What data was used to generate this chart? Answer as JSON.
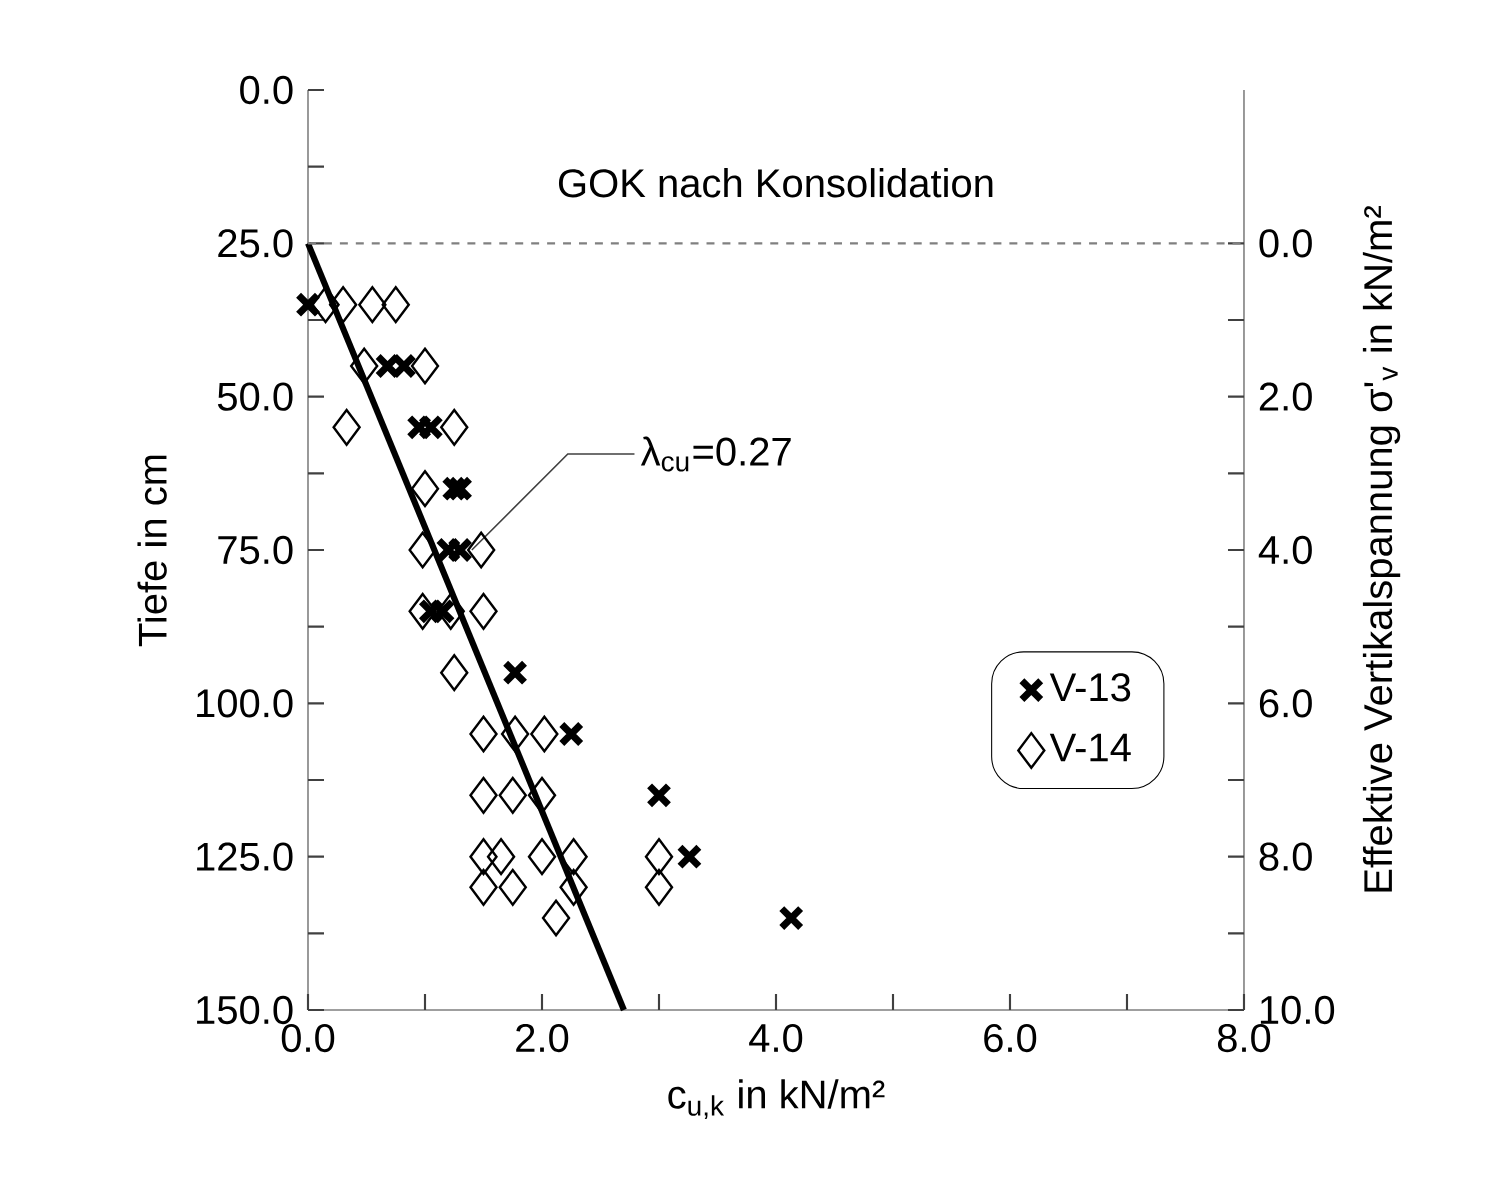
{
  "chart_data": {
    "type": "scatter",
    "xlabel": "c$_{u,k}$ in kN/m²",
    "ylabel": "Tiefe in cm",
    "y2label": "Effektive Vertikalspannung σ'$_{v}$ in kN/m²",
    "xlim": [
      0,
      8
    ],
    "ylim": [
      150,
      0
    ],
    "y2lim": [
      10,
      -2
    ],
    "xticks": [
      {
        "value": 0,
        "label": "0.0"
      },
      {
        "value": 1,
        "label": null
      },
      {
        "value": 2,
        "label": "2.0"
      },
      {
        "value": 3,
        "label": null
      },
      {
        "value": 4,
        "label": "4.0"
      },
      {
        "value": 5,
        "label": null
      },
      {
        "value": 6,
        "label": "6.0"
      },
      {
        "value": 7,
        "label": null
      },
      {
        "value": 8,
        "label": "8.0"
      }
    ],
    "yticks": [
      {
        "value": 0,
        "label": "0.0"
      },
      {
        "value": 12.5,
        "label": null
      },
      {
        "value": 25,
        "label": "25.0"
      },
      {
        "value": 37.5,
        "label": null
      },
      {
        "value": 50,
        "label": "50.0"
      },
      {
        "value": 62.5,
        "label": null
      },
      {
        "value": 75,
        "label": "75.0"
      },
      {
        "value": 87.5,
        "label": null
      },
      {
        "value": 100,
        "label": "100.0"
      },
      {
        "value": 112.5,
        "label": null
      },
      {
        "value": 125,
        "label": "125.0"
      },
      {
        "value": 137.5,
        "label": null
      },
      {
        "value": 150,
        "label": "150.0"
      }
    ],
    "y2ticks": [
      {
        "value": 0,
        "label": "0.0"
      },
      {
        "value": 1,
        "label": null
      },
      {
        "value": 2,
        "label": "2.0"
      },
      {
        "value": 3,
        "label": null
      },
      {
        "value": 4,
        "label": "4.0"
      },
      {
        "value": 5,
        "label": null
      },
      {
        "value": 6,
        "label": "6.0"
      },
      {
        "value": 7,
        "label": null
      },
      {
        "value": 8,
        "label": "8.0"
      },
      {
        "value": 9,
        "label": null
      },
      {
        "value": 10,
        "label": "10.0"
      }
    ],
    "series": [
      {
        "name": "V-13",
        "color": "#000000",
        "marker": "cross",
        "x": [
          0.0,
          0.68,
          0.82,
          0.95,
          1.05,
          1.25,
          1.3,
          1.2,
          1.3,
          1.05,
          1.15,
          1.77,
          2.25,
          3.0,
          3.26,
          4.13
        ],
        "values": [
          35,
          45,
          45,
          55,
          55,
          65,
          65,
          75,
          75,
          85,
          85,
          95,
          105,
          115,
          125,
          135
        ]
      },
      {
        "name": "V-14",
        "color": "#000000",
        "marker": "diamond",
        "x": [
          0.15,
          0.3,
          0.55,
          0.75,
          0.48,
          1.0,
          0.33,
          1.25,
          1.0,
          0.98,
          1.48,
          0.98,
          1.22,
          1.5,
          1.25,
          1.5,
          1.77,
          2.02,
          1.5,
          1.75,
          2.0,
          1.5,
          1.65,
          2.0,
          2.27,
          3.0,
          1.5,
          1.75,
          2.27,
          3.0,
          2.12
        ],
        "values": [
          35,
          35,
          35,
          35,
          45,
          45,
          55,
          55,
          65,
          75,
          75,
          85,
          85,
          85,
          95,
          105,
          105,
          105,
          115,
          115,
          115,
          125,
          125,
          125,
          125,
          125,
          130,
          130,
          130,
          130,
          135
        ]
      },
      {
        "type": "line",
        "color": "#000000",
        "x": [
          0,
          2.7
        ],
        "values": [
          25,
          150
        ]
      }
    ],
    "ref_lines": [
      {
        "axis": "y",
        "value": 25,
        "label": "GOK nach Konsolidation",
        "line_style": "dashed",
        "color": "#808080"
      }
    ],
    "annotations": [
      {
        "text": "λ$_{cu}$=0.27",
        "x": 1.4,
        "y": 75
      }
    ],
    "legend": "right"
  }
}
